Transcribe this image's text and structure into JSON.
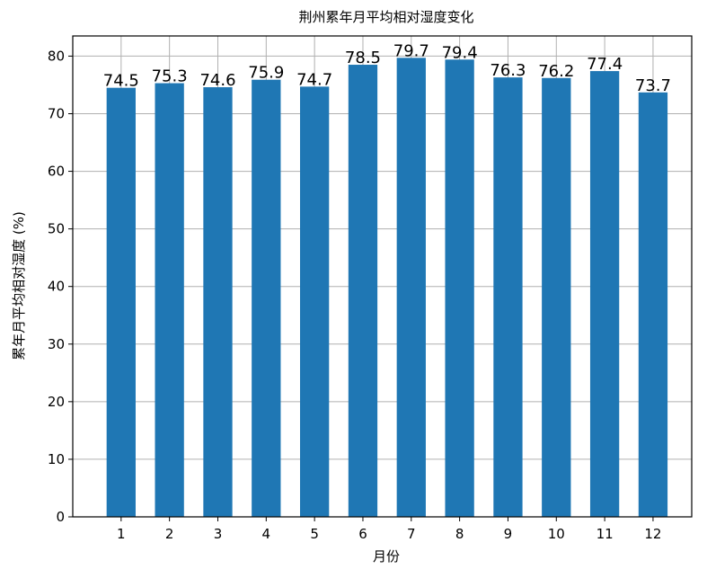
{
  "chart_data": {
    "type": "bar",
    "title": "荆州累年月平均相对湿度变化",
    "xlabel": "月份",
    "ylabel": "累年月平均相对湿度 (%)",
    "categories": [
      "1",
      "2",
      "3",
      "4",
      "5",
      "6",
      "7",
      "8",
      "9",
      "10",
      "11",
      "12"
    ],
    "values": [
      74.5,
      75.3,
      74.6,
      75.9,
      74.7,
      78.5,
      79.7,
      79.4,
      76.3,
      76.2,
      77.4,
      73.7
    ],
    "data_labels": [
      "74.5",
      "75.3",
      "74.6",
      "75.9",
      "74.7",
      "78.5",
      "79.7",
      "79.4",
      "76.3",
      "76.2",
      "77.4",
      "73.7"
    ],
    "yticks": [
      "0",
      "10",
      "20",
      "30",
      "40",
      "50",
      "60",
      "70",
      "80"
    ],
    "ylim": [
      0,
      83.5
    ],
    "grid": true,
    "bar_color": "#1f77b4"
  }
}
